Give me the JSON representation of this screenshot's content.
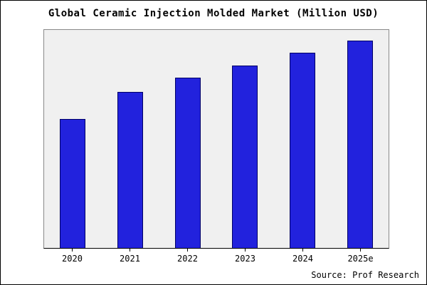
{
  "title": "Global Ceramic Injection Molded Market (Million USD)",
  "source": "Source: Prof Research",
  "colors": {
    "bar_fill": "#2222dd",
    "bar_border": "#000066",
    "plot_bg": "#f0f0f0",
    "background": "#ffffff"
  },
  "chart_data": {
    "type": "bar",
    "title": "Global Ceramic Injection Molded Market (Million USD)",
    "categories": [
      "2020",
      "2021",
      "2022",
      "2023",
      "2024",
      "2025e"
    ],
    "values": [
      62,
      75,
      82,
      88,
      94,
      100
    ],
    "xlabel": "",
    "ylabel": "",
    "ylim": [
      0,
      105
    ],
    "grid": false,
    "legend": false,
    "y_axis_labels_visible": false,
    "source": "Source: Prof Research"
  }
}
